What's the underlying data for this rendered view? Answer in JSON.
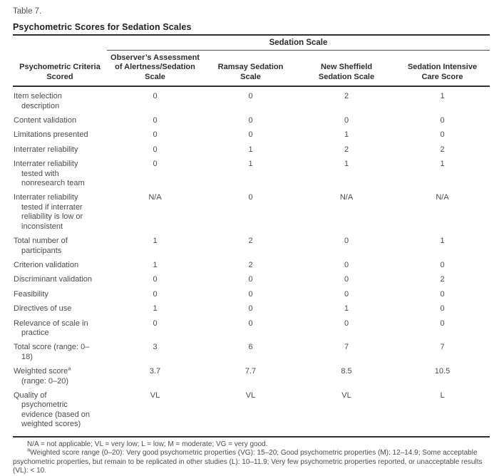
{
  "page": {
    "table_number": "Table 7.",
    "title": "Psychometric Scores for Sedation Scales"
  },
  "table": {
    "span_header": "Sedation Scale",
    "row_header": "Psychometric Criteria\nScored",
    "columns": [
      "Observer’s Assessment\nof Alertness/Sedation\nScale",
      "Ramsay Sedation\nScale",
      "New Sheffield\nSedation Scale",
      "Sedation Intensive\nCare Score"
    ],
    "rows": [
      {
        "label": "Item selection description",
        "sup": "",
        "label_after": "",
        "values": [
          "0",
          "0",
          "2",
          "1"
        ]
      },
      {
        "label": "Content validation",
        "sup": "",
        "label_after": "",
        "values": [
          "0",
          "0",
          "0",
          "0"
        ]
      },
      {
        "label": "Limitations presented",
        "sup": "",
        "label_after": "",
        "values": [
          "0",
          "0",
          "1",
          "0"
        ]
      },
      {
        "label": "Interrater reliability",
        "sup": "",
        "label_after": "",
        "values": [
          "0",
          "1",
          "2",
          "2"
        ]
      },
      {
        "label": "Interrater reliability tested with nonresearch team",
        "sup": "",
        "label_after": "",
        "values": [
          "0",
          "1",
          "1",
          "1"
        ]
      },
      {
        "label": "Interrater reliability tested if interrater reliability is low or inconsistent",
        "sup": "",
        "label_after": "",
        "values": [
          "N/A",
          "0",
          "N/A",
          "N/A"
        ]
      },
      {
        "label": "Total number of participants",
        "sup": "",
        "label_after": "",
        "values": [
          "1",
          "2",
          "0",
          "1"
        ]
      },
      {
        "label": "Criterion validation",
        "sup": "",
        "label_after": "",
        "values": [
          "1",
          "2",
          "0",
          "0"
        ]
      },
      {
        "label": "Discriminant validation",
        "sup": "",
        "label_after": "",
        "values": [
          "0",
          "0",
          "0",
          "2"
        ]
      },
      {
        "label": "Feasibility",
        "sup": "",
        "label_after": "",
        "values": [
          "0",
          "0",
          "0",
          "0"
        ]
      },
      {
        "label": "Directives of use",
        "sup": "",
        "label_after": "",
        "values": [
          "1",
          "0",
          "1",
          "0"
        ]
      },
      {
        "label": "Relevance of scale in practice",
        "sup": "",
        "label_after": "",
        "values": [
          "0",
          "0",
          "0",
          "0"
        ]
      },
      {
        "label": "Total score (range: 0–18)",
        "sup": "",
        "label_after": "",
        "values": [
          "3",
          "6",
          "7",
          "7"
        ]
      },
      {
        "label": "Weighted score",
        "sup": "a",
        "label_after": " (range: 0–20)",
        "values": [
          "3.7",
          "7.7",
          "8.5",
          "10.5"
        ]
      },
      {
        "label": "Quality of psychometric evidence (based on weighted scores)",
        "sup": "",
        "label_after": "",
        "values": [
          "VL",
          "VL",
          "VL",
          "L"
        ]
      }
    ],
    "footnotes": [
      {
        "sup": "",
        "text": "N/A = not applicable; VL = very low; L = low; M = moderate; VG = very good."
      },
      {
        "sup": "a",
        "text": "Weighted score range (0–20): Very good psychometric properties (VG): 15–20; Good psychometric properties (M): 12–14.9; Some acceptable psychometric properties, but remain to be replicated in other studies (L): 10–11.9; Very few psychometric properties reported, or unacceptable results (VL): < 10."
      }
    ]
  }
}
